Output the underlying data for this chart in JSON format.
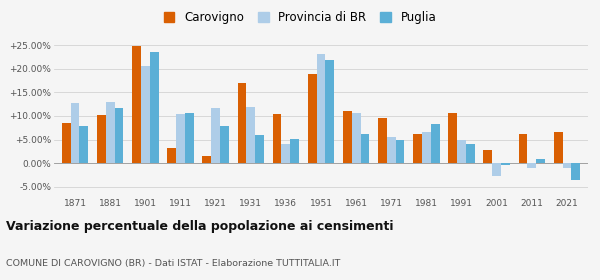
{
  "years": [
    1871,
    1881,
    1901,
    1911,
    1921,
    1931,
    1936,
    1951,
    1961,
    1971,
    1981,
    1991,
    2001,
    2011,
    2021
  ],
  "carovigno": [
    8.5,
    10.2,
    24.8,
    3.1,
    1.6,
    17.1,
    10.5,
    19.0,
    11.0,
    9.5,
    6.1,
    10.7,
    2.7,
    6.2,
    6.5
  ],
  "provincia_br": [
    12.7,
    13.0,
    20.6,
    10.5,
    11.8,
    12.0,
    4.0,
    23.2,
    10.6,
    5.6,
    6.5,
    5.0,
    -2.7,
    -1.0,
    -1.0
  ],
  "puglia": [
    7.9,
    11.6,
    23.6,
    10.6,
    7.8,
    6.0,
    5.2,
    21.8,
    6.2,
    4.8,
    8.2,
    4.1,
    -0.5,
    0.8,
    -3.5
  ],
  "color_carovigno": "#d95f02",
  "color_provincia": "#aecde8",
  "color_puglia": "#5bafd6",
  "title": "Variazione percentuale della popolazione ai censimenti",
  "subtitle": "COMUNE DI CAROVIGNO (BR) - Dati ISTAT - Elaborazione TUTTITALIA.IT",
  "ylim": [
    -7,
    27.5
  ],
  "yticks": [
    -5,
    0,
    5,
    10,
    15,
    20,
    25
  ],
  "legend_labels": [
    "Carovigno",
    "Provincia di BR",
    "Puglia"
  ],
  "bar_width": 0.25,
  "background_color": "#f5f5f5",
  "plot_bg_color": "#f5f5f5",
  "grid_color": "#cccccc"
}
